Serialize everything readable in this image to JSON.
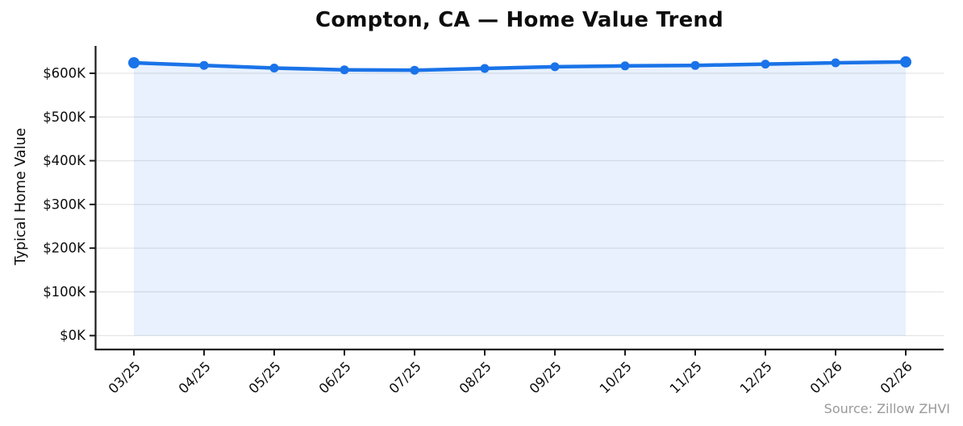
{
  "chart_data": {
    "type": "line",
    "title": "Compton, CA — Home Value Trend",
    "ylabel": "Typical Home Value",
    "xlabel": "",
    "unit": "USD thousands",
    "categories": [
      "03/25",
      "04/25",
      "05/25",
      "06/25",
      "07/25",
      "08/25",
      "09/25",
      "10/25",
      "11/25",
      "12/25",
      "01/26",
      "02/26"
    ],
    "values": [
      624,
      618,
      612,
      608,
      607,
      611,
      615,
      617,
      618,
      621,
      624,
      626
    ],
    "ytick_labels": [
      "$0K",
      "$100K",
      "$200K",
      "$300K",
      "$400K",
      "$500K",
      "$600K"
    ],
    "ytick_values": [
      0,
      100,
      200,
      300,
      400,
      500,
      600
    ],
    "ylim": [
      0,
      660
    ],
    "grid": "horizontal",
    "legend_position": "none",
    "line_color": "#1a73e8",
    "marker_color": "#1a73e8",
    "fill_color": "rgba(26,115,232,0.10)",
    "grid_color": "#e6e6e6",
    "axis_color": "#1a1a1a",
    "tick_label_color": "#0d0d0d",
    "source_color": "#9a9a9a",
    "source_note": "Source: Zillow ZHVI"
  }
}
